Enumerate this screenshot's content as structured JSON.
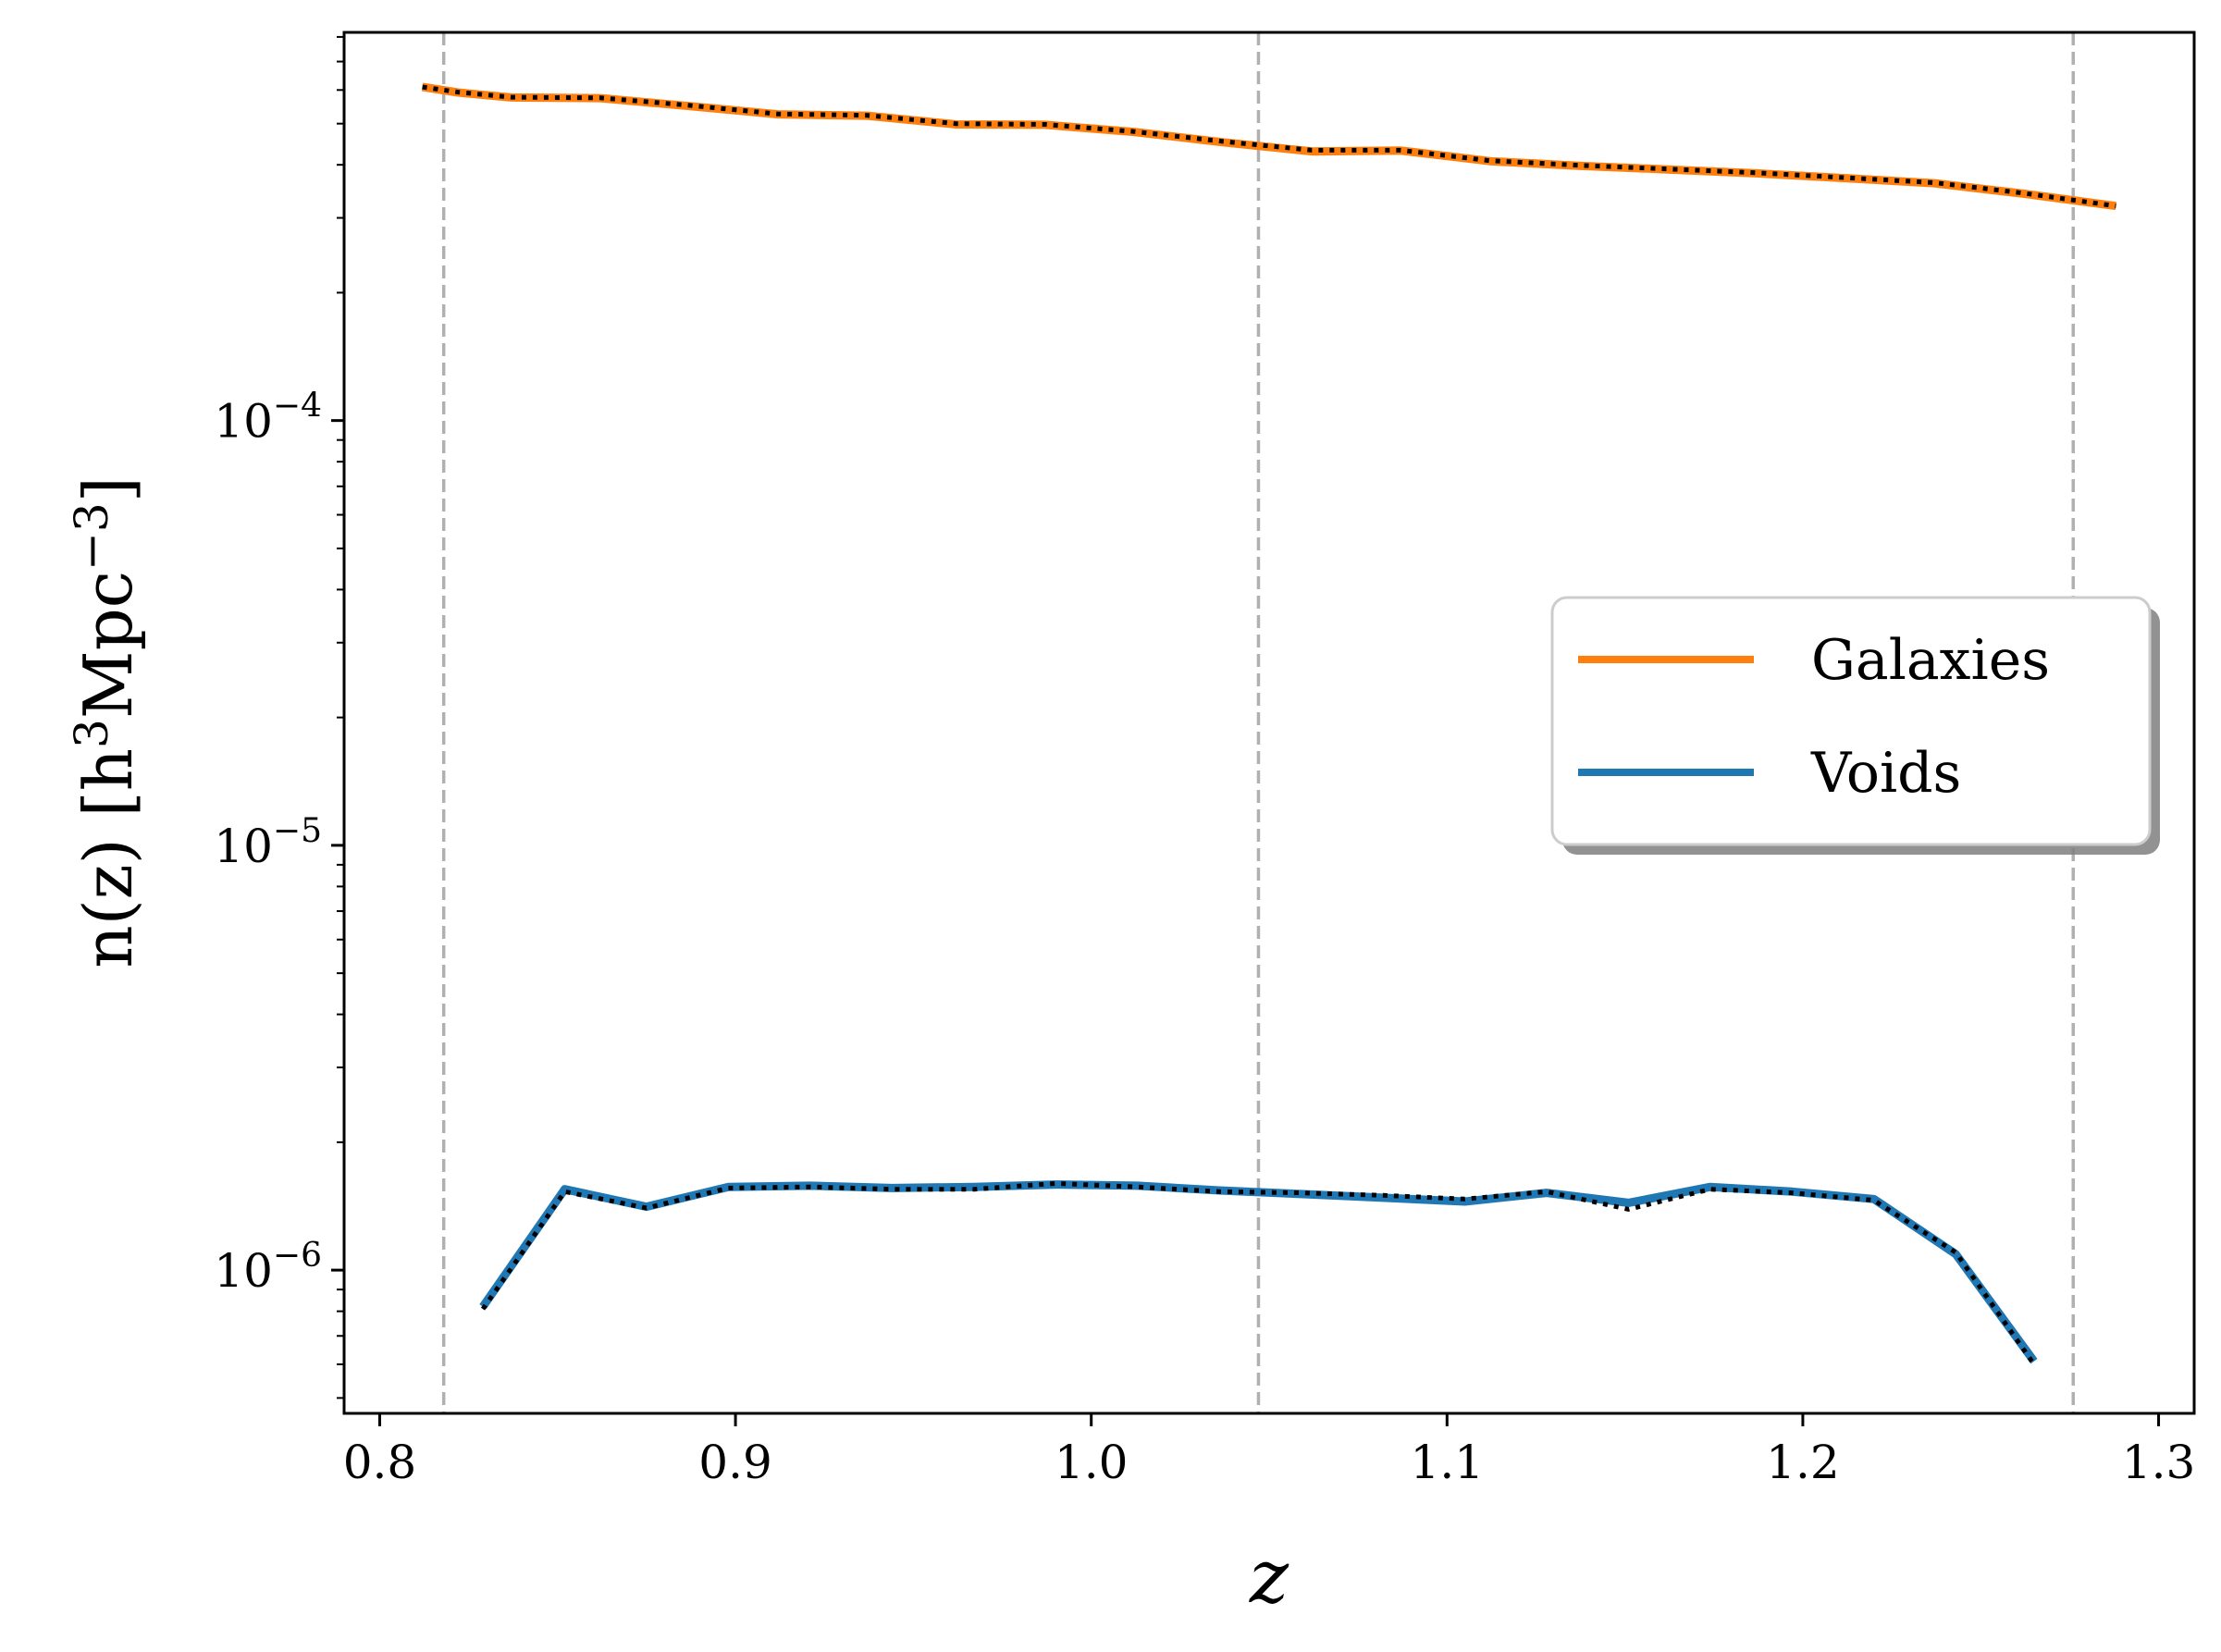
{
  "chart_data": {
    "type": "line",
    "xlabel": "z",
    "ylabel": {
      "prefix": "n(z) [h",
      "sup1": "3",
      "mid": "Mpc",
      "sup2": "−3",
      "suffix": "]"
    },
    "xlim": [
      0.79,
      1.31
    ],
    "ylim": [
      4.6e-07,
      0.00082
    ],
    "yscale": "log",
    "x_ticks": [
      0.8,
      0.9,
      1.0,
      1.1,
      1.2,
      1.3
    ],
    "x_tick_labels": [
      "0.8",
      "0.9",
      "1.0",
      "1.1",
      "1.2",
      "1.3"
    ],
    "y_major_ticks": [
      {
        "value": 1e-06,
        "base": "10",
        "exp": "−6"
      },
      {
        "value": 1e-05,
        "base": "10",
        "exp": "−5"
      },
      {
        "value": 0.0001,
        "base": "10",
        "exp": "−4"
      }
    ],
    "vlines": [
      0.818,
      1.047,
      1.276
    ],
    "legend": {
      "position": "center-right",
      "shadow": true
    },
    "series": [
      {
        "name": "Galaxies",
        "color": "#ff7f0e",
        "x": [
          0.812,
          0.822,
          0.837,
          0.862,
          0.887,
          0.912,
          0.937,
          0.962,
          0.987,
          1.012,
          1.037,
          1.062,
          1.087,
          1.112,
          1.137,
          1.162,
          1.187,
          1.212,
          1.237,
          1.262,
          1.288
        ],
        "y": [
          0.00061,
          0.000592,
          0.000576,
          0.000574,
          0.00055,
          0.000526,
          0.000522,
          0.000498,
          0.000497,
          0.000478,
          0.000452,
          0.00043,
          0.000432,
          0.000408,
          0.000398,
          0.00039,
          0.000382,
          0.000372,
          0.000362,
          0.000342,
          0.00032
        ]
      },
      {
        "name": "Voids",
        "color": "#1f77b4",
        "x": [
          0.829,
          0.852,
          0.875,
          0.898,
          0.921,
          0.944,
          0.967,
          0.99,
          1.013,
          1.036,
          1.059,
          1.082,
          1.105,
          1.128,
          1.151,
          1.174,
          1.197,
          1.22,
          1.243,
          1.265
        ],
        "y": [
          8.2e-07,
          1.55e-06,
          1.41e-06,
          1.57e-06,
          1.58e-06,
          1.56e-06,
          1.57e-06,
          1.59e-06,
          1.58e-06,
          1.54e-06,
          1.51e-06,
          1.48e-06,
          1.45e-06,
          1.52e-06,
          1.44e-06,
          1.57e-06,
          1.53e-06,
          1.47e-06,
          1.09e-06,
          6.1e-07
        ]
      },
      {
        "color": "#000000",
        "dashed": true,
        "x": [
          0.812,
          0.822,
          0.837,
          0.862,
          0.887,
          0.912,
          0.937,
          0.962,
          0.987,
          1.012,
          1.037,
          1.062,
          1.087,
          1.112,
          1.137,
          1.162,
          1.187,
          1.212,
          1.237,
          1.262,
          1.288
        ],
        "y": [
          0.00061,
          0.000593,
          0.000577,
          0.000575,
          0.000552,
          0.000527,
          0.000523,
          0.0005,
          0.000498,
          0.000479,
          0.000454,
          0.000433,
          0.000433,
          0.000409,
          0.000399,
          0.000391,
          0.000383,
          0.000373,
          0.000363,
          0.000343,
          0.00032
        ]
      },
      {
        "color": "#000000",
        "dashed": true,
        "x": [
          0.829,
          0.852,
          0.875,
          0.898,
          0.921,
          0.944,
          0.967,
          0.99,
          1.013,
          1.036,
          1.059,
          1.082,
          1.105,
          1.128,
          1.151,
          1.174,
          1.197,
          1.22,
          1.243,
          1.265
        ],
        "y": [
          8.1e-07,
          1.53e-06,
          1.4e-06,
          1.56e-06,
          1.57e-06,
          1.55e-06,
          1.55e-06,
          1.6e-06,
          1.57e-06,
          1.53e-06,
          1.52e-06,
          1.5e-06,
          1.47e-06,
          1.53e-06,
          1.39e-06,
          1.55e-06,
          1.52e-06,
          1.46e-06,
          1.1e-06,
          6e-07
        ]
      }
    ]
  }
}
